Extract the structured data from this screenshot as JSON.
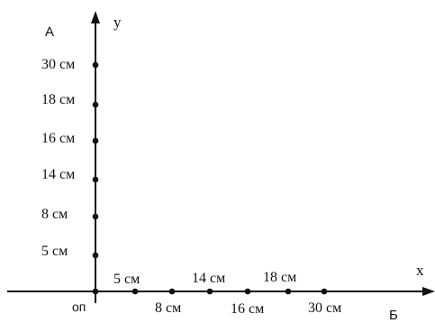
{
  "diagram": {
    "corner_labels": {
      "top_left": "А",
      "bottom_right": "Б"
    },
    "origin_label": "оп",
    "x_axis": {
      "label": "x",
      "points": [
        "5 см",
        "8 см",
        "14 см",
        "16 см",
        "18 см",
        "30 см"
      ]
    },
    "y_axis": {
      "label": "у",
      "points": [
        "5 см",
        "8 см",
        "14 см",
        "16 см",
        "18 см",
        "30 см"
      ]
    },
    "colors": {
      "ink": "#111111",
      "background": "#ffffff"
    }
  }
}
